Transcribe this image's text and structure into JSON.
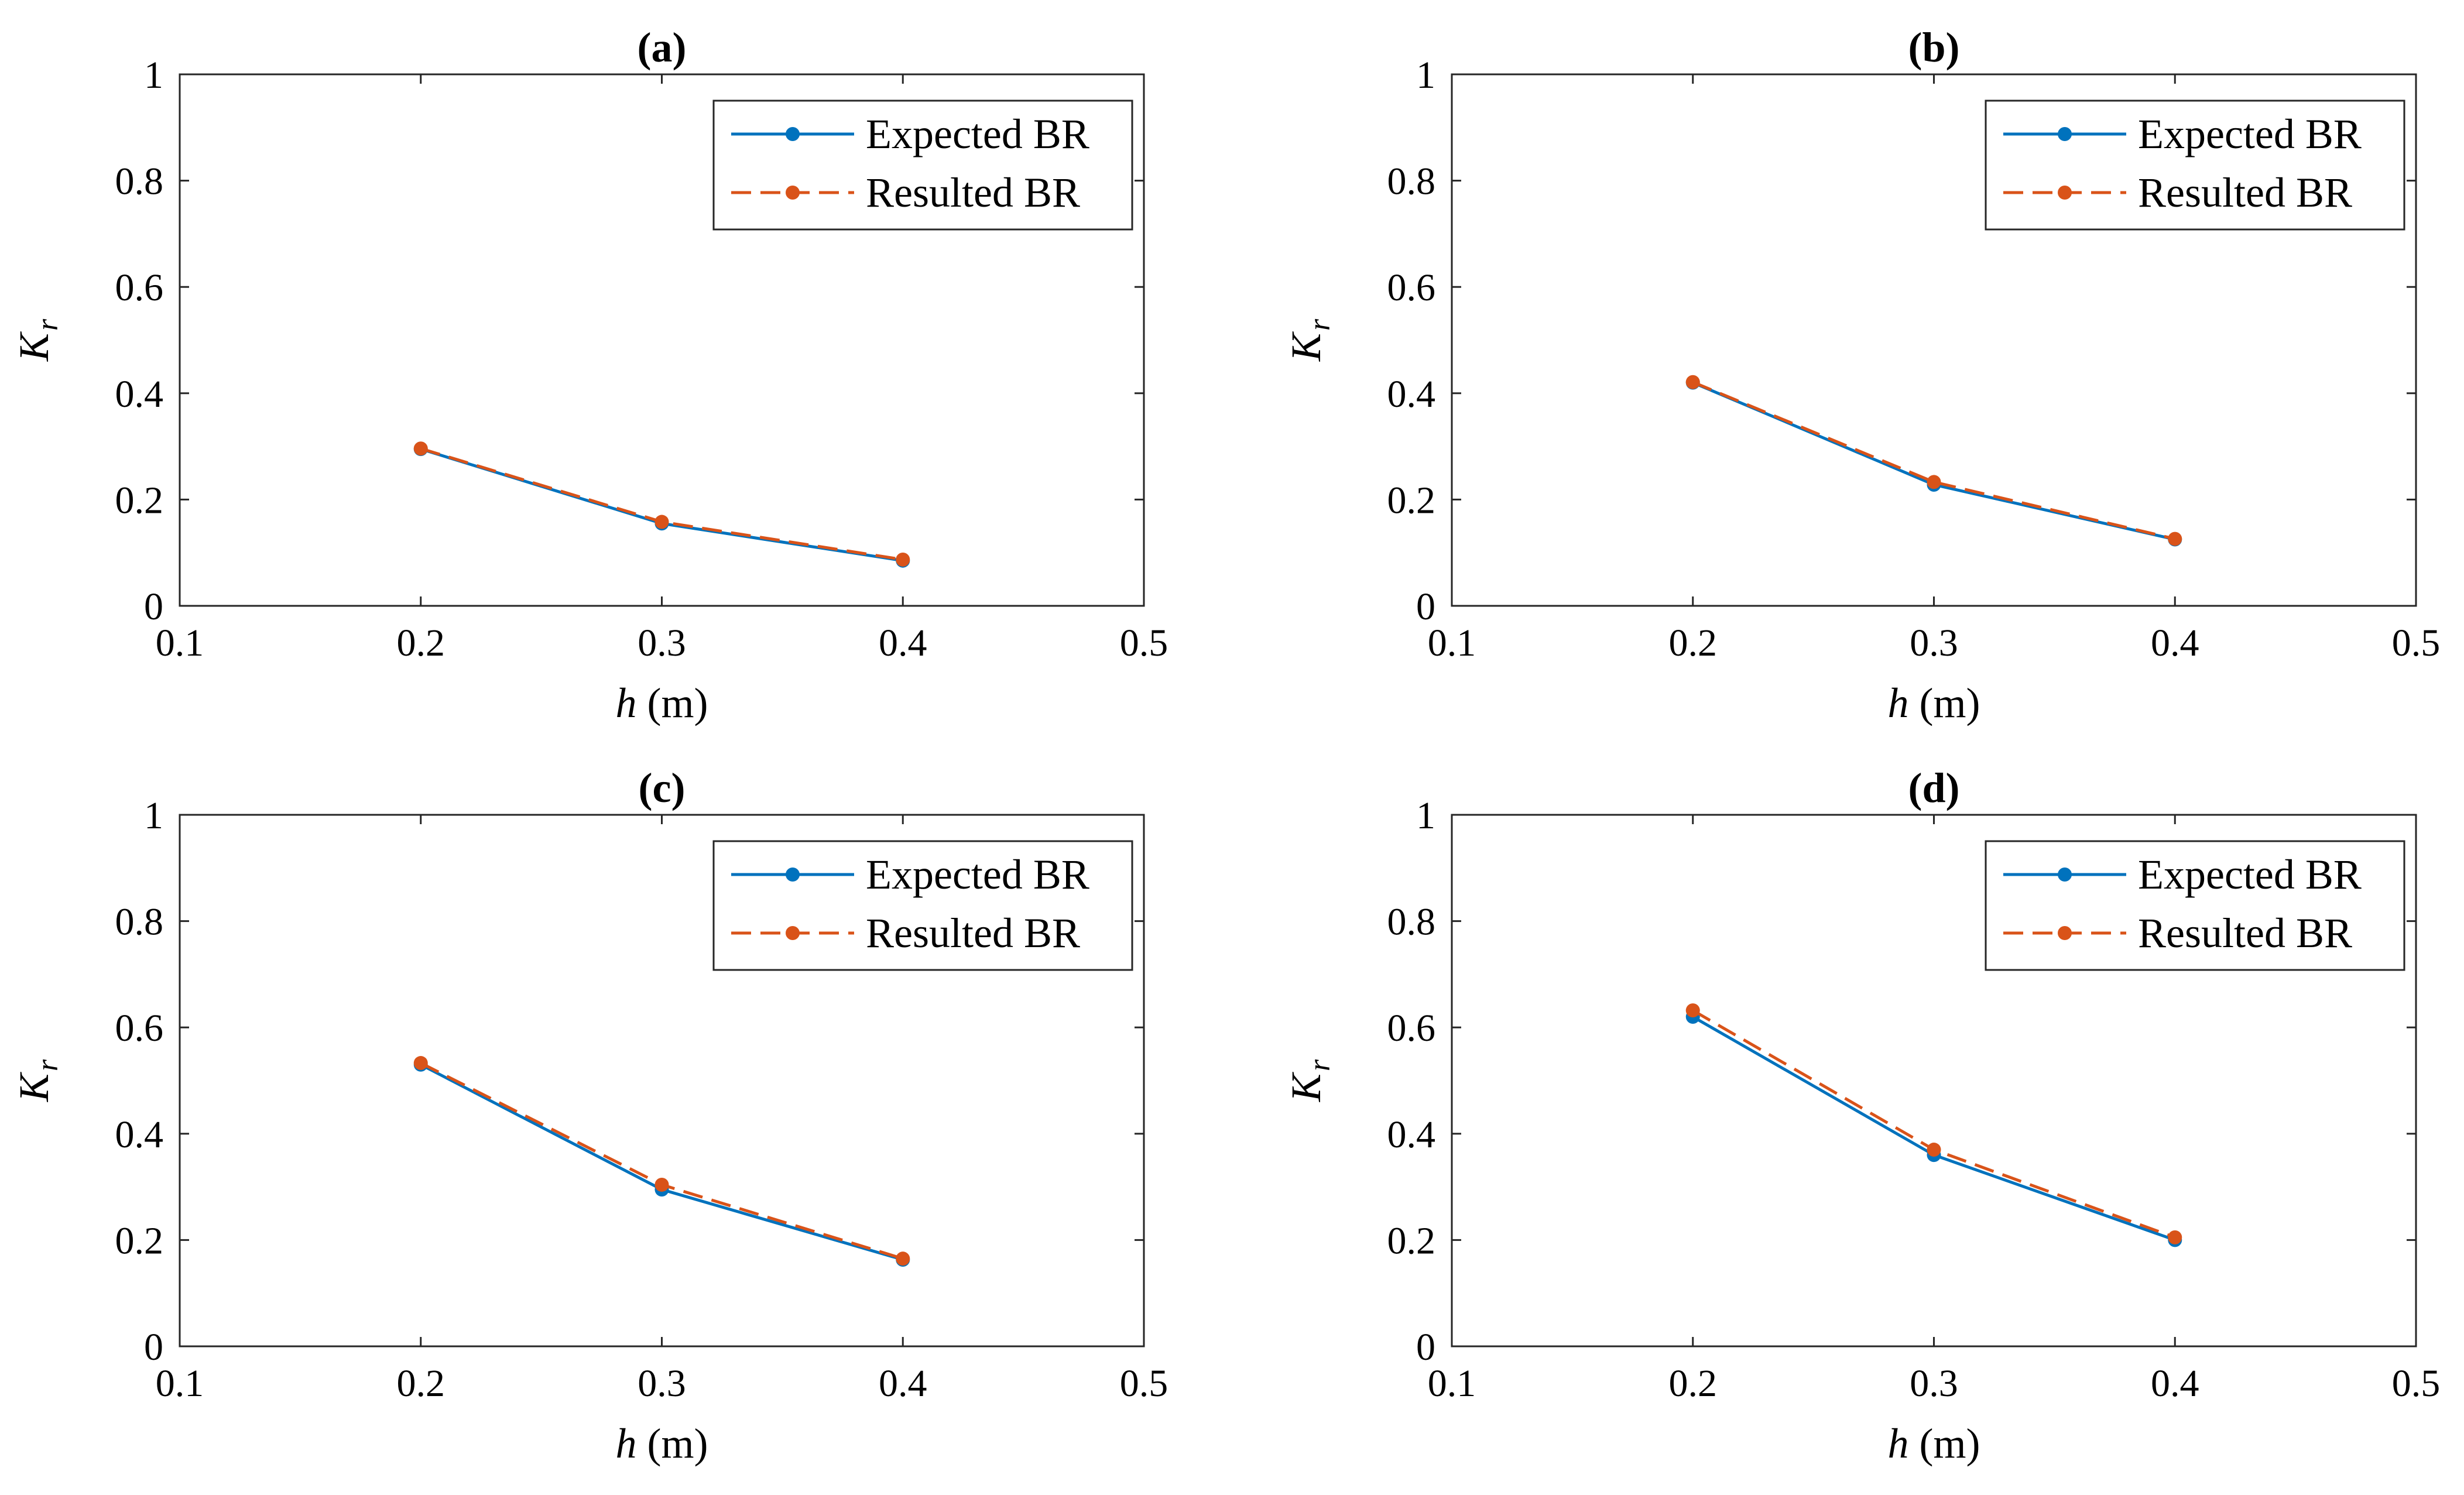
{
  "chart_data": [
    {
      "type": "line",
      "title": "(a)",
      "xlabel_var": "h",
      "xlabel_unit": " (m)",
      "ylabel_var": "K",
      "ylabel_sub": "r",
      "xlim": [
        0.1,
        0.5
      ],
      "ylim": [
        0,
        1
      ],
      "xticks": [
        0.1,
        0.2,
        0.3,
        0.4,
        0.5
      ],
      "xtick_labels": [
        "0.1",
        "0.2",
        "0.3",
        "0.4",
        "0.5"
      ],
      "yticks": [
        0,
        0.2,
        0.4,
        0.6,
        0.8,
        1
      ],
      "ytick_labels": [
        "0",
        "0.2",
        "0.4",
        "0.6",
        "0.8",
        "1"
      ],
      "legend_position": "top-right",
      "x": [
        0.2,
        0.3,
        0.4
      ],
      "series": [
        {
          "name": "Expected BR",
          "values": [
            0.295,
            0.155,
            0.085
          ],
          "color": "#0072BD",
          "dash": "solid"
        },
        {
          "name": "Resulted BR",
          "values": [
            0.296,
            0.158,
            0.087
          ],
          "color": "#D95319",
          "dash": "dashed"
        }
      ]
    },
    {
      "type": "line",
      "title": "(b)",
      "xlabel_var": "h",
      "xlabel_unit": " (m)",
      "ylabel_var": "K",
      "ylabel_sub": "r",
      "xlim": [
        0.1,
        0.5
      ],
      "ylim": [
        0,
        1
      ],
      "xticks": [
        0.1,
        0.2,
        0.3,
        0.4,
        0.5
      ],
      "xtick_labels": [
        "0.1",
        "0.2",
        "0.3",
        "0.4",
        "0.5"
      ],
      "yticks": [
        0,
        0.2,
        0.4,
        0.6,
        0.8,
        1
      ],
      "ytick_labels": [
        "0",
        "0.2",
        "0.4",
        "0.6",
        "0.8",
        "1"
      ],
      "legend_position": "top-right",
      "x": [
        0.2,
        0.3,
        0.4
      ],
      "series": [
        {
          "name": "Expected BR",
          "values": [
            0.42,
            0.228,
            0.125
          ],
          "color": "#0072BD",
          "dash": "solid"
        },
        {
          "name": "Resulted BR",
          "values": [
            0.421,
            0.233,
            0.126
          ],
          "color": "#D95319",
          "dash": "dashed"
        }
      ]
    },
    {
      "type": "line",
      "title": "(c)",
      "xlabel_var": "h",
      "xlabel_unit": " (m)",
      "ylabel_var": "K",
      "ylabel_sub": "r",
      "xlim": [
        0.1,
        0.5
      ],
      "ylim": [
        0,
        1
      ],
      "xticks": [
        0.1,
        0.2,
        0.3,
        0.4,
        0.5
      ],
      "xtick_labels": [
        "0.1",
        "0.2",
        "0.3",
        "0.4",
        "0.5"
      ],
      "yticks": [
        0,
        0.2,
        0.4,
        0.6,
        0.8,
        1
      ],
      "ytick_labels": [
        "0",
        "0.2",
        "0.4",
        "0.6",
        "0.8",
        "1"
      ],
      "legend_position": "top-right",
      "x": [
        0.2,
        0.3,
        0.4
      ],
      "series": [
        {
          "name": "Expected BR",
          "values": [
            0.53,
            0.295,
            0.163
          ],
          "color": "#0072BD",
          "dash": "solid"
        },
        {
          "name": "Resulted BR",
          "values": [
            0.533,
            0.304,
            0.165
          ],
          "color": "#D95319",
          "dash": "dashed"
        }
      ]
    },
    {
      "type": "line",
      "title": "(d)",
      "xlabel_var": "h",
      "xlabel_unit": " (m)",
      "ylabel_var": "K",
      "ylabel_sub": "r",
      "xlim": [
        0.1,
        0.5
      ],
      "ylim": [
        0,
        1
      ],
      "xticks": [
        0.1,
        0.2,
        0.3,
        0.4,
        0.5
      ],
      "xtick_labels": [
        "0.1",
        "0.2",
        "0.3",
        "0.4",
        "0.5"
      ],
      "yticks": [
        0,
        0.2,
        0.4,
        0.6,
        0.8,
        1
      ],
      "ytick_labels": [
        "0",
        "0.2",
        "0.4",
        "0.6",
        "0.8",
        "1"
      ],
      "legend_position": "top-right",
      "x": [
        0.2,
        0.3,
        0.4
      ],
      "series": [
        {
          "name": "Expected BR",
          "values": [
            0.62,
            0.36,
            0.2
          ],
          "color": "#0072BD",
          "dash": "solid"
        },
        {
          "name": "Resulted BR",
          "values": [
            0.632,
            0.37,
            0.205
          ],
          "color": "#D95319",
          "dash": "dashed"
        }
      ]
    }
  ]
}
